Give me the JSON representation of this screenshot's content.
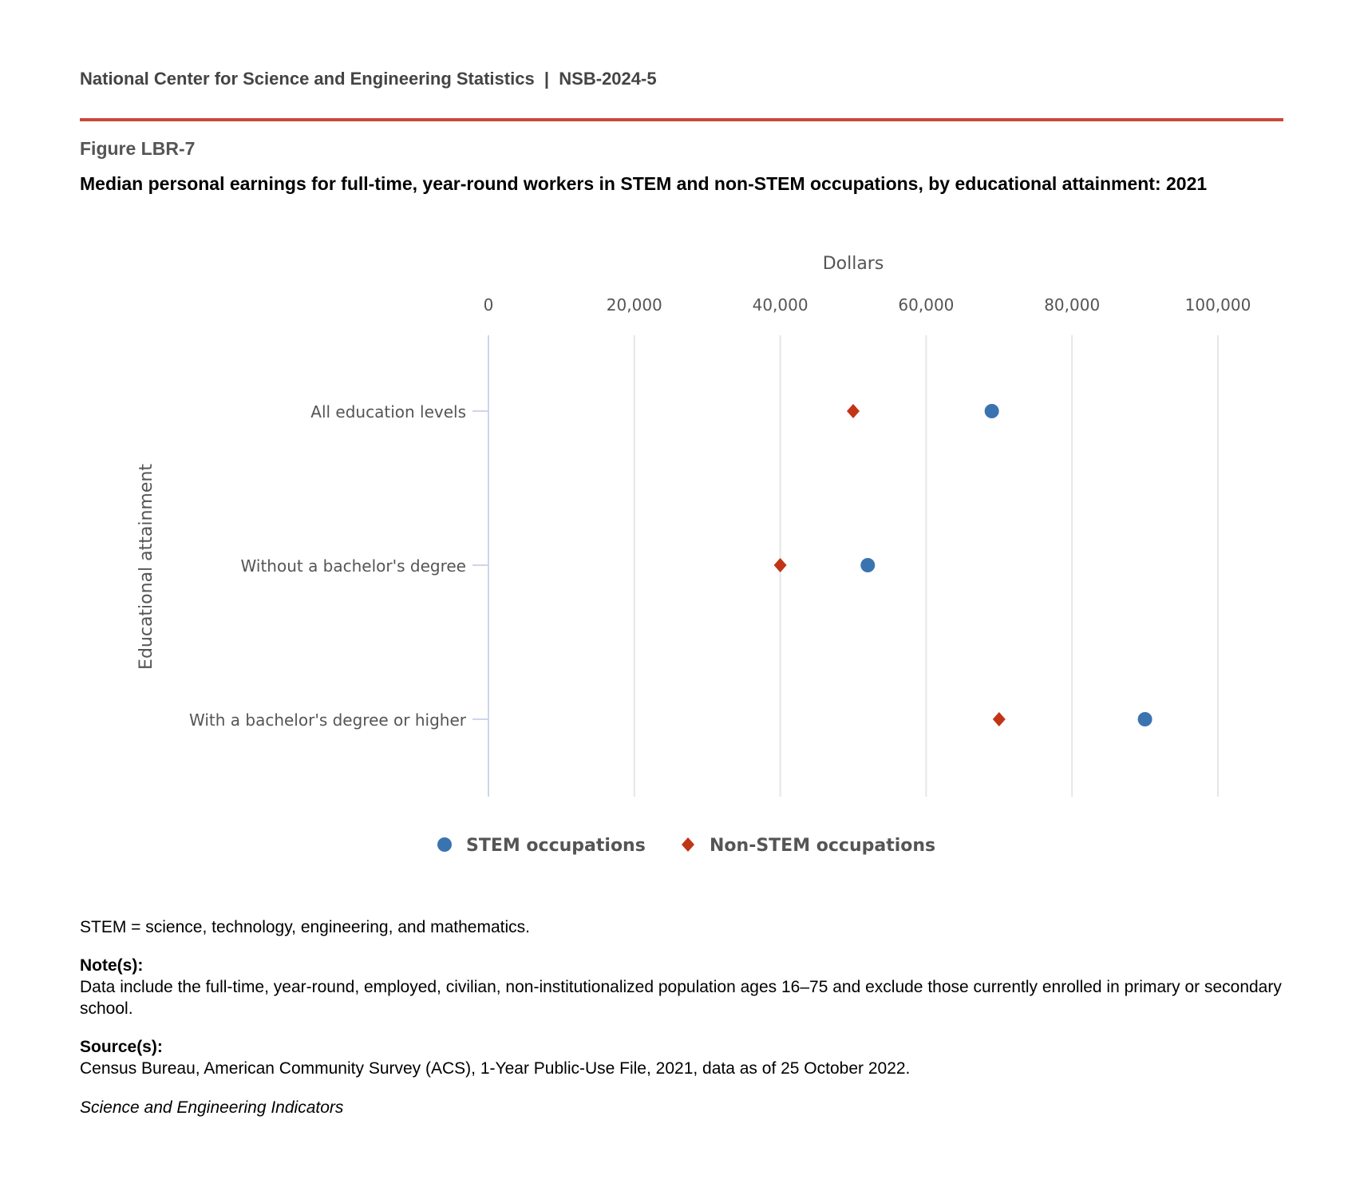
{
  "header": {
    "org": "National Center for Science and Engineering Statistics  |  NSB-2024-5",
    "figure_label": "Figure LBR-7",
    "title": "Median personal earnings for full-time, year-round workers in STEM and non-STEM occupations, by educational attainment: 2021"
  },
  "chart_data": {
    "type": "scatter",
    "title": "Median personal earnings for full-time, year-round workers in STEM and non-STEM occupations, by educational attainment: 2021",
    "xlabel": "Dollars",
    "ylabel": "Educational attainment",
    "xlim": [
      0,
      100000
    ],
    "xticks": [
      0,
      20000,
      40000,
      60000,
      80000,
      100000
    ],
    "xtick_labels": [
      "0",
      "20,000",
      "40,000",
      "60,000",
      "80,000",
      "100,000"
    ],
    "categories": [
      "All education levels",
      "Without a bachelor's degree",
      "With a bachelor's degree or higher"
    ],
    "series": [
      {
        "name": "STEM occupations",
        "marker": "circle",
        "color": "#3a74b0",
        "values": [
          69000,
          52000,
          90000
        ]
      },
      {
        "name": "Non-STEM occupations",
        "marker": "diamond",
        "color": "#c23416",
        "values": [
          50000,
          40000,
          70000
        ]
      }
    ],
    "grid": "vertical",
    "legend": "bottom"
  },
  "footer": {
    "abbrev": "STEM = science, technology, engineering, and mathematics.",
    "notes_label": "Note(s):",
    "notes": "Data include the full-time, year-round, employed, civilian, non-institutionalized population ages 16–75 and exclude those currently enrolled in primary or secondary school.",
    "source_label": "Source(s):",
    "source": "Census Bureau, American Community Survey (ACS), 1-Year Public-Use File, 2021, data as of 25 October 2022.",
    "publication": "Science and Engineering Indicators"
  }
}
